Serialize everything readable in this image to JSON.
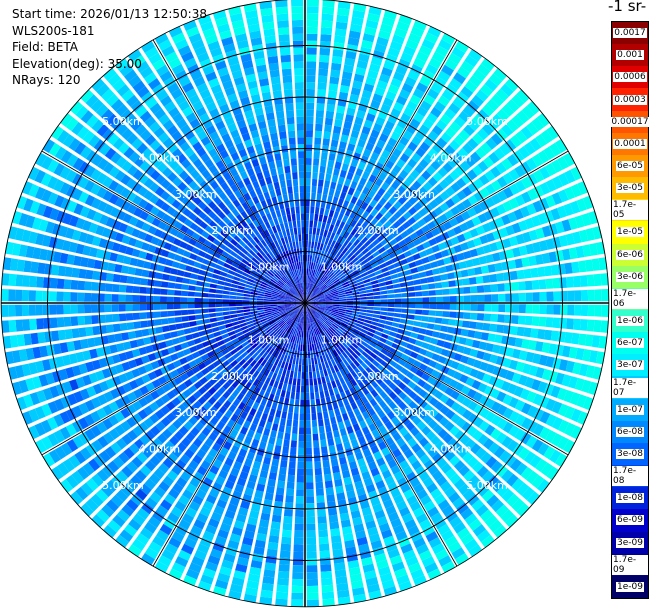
{
  "info": {
    "start_time": "Start time: 2026/01/13 12:50:38",
    "instrument": "WLS200s-181",
    "field": "Field: BETA",
    "elevation": "Elevation(deg): 35.00",
    "nrays": "NRays: 120"
  },
  "colorbar": {
    "unit_label": "-1 sr-",
    "labels": [
      "0.0017",
      "0.001",
      "0.0006",
      "0.0003",
      "0.00017",
      "0.0001",
      "6e-05",
      "3e-05",
      "1.7e-05",
      "1e-05",
      "6e-06",
      "3e-06",
      "1.7e-06",
      "1e-06",
      "6e-07",
      "3e-07",
      "1.7e-07",
      "1e-07",
      "6e-08",
      "3e-08",
      "1.7e-08",
      "1e-08",
      "6e-09",
      "3e-09",
      "1.7e-09",
      "1e-09"
    ],
    "colors": [
      "#8b0000",
      "#b20000",
      "#e00000",
      "#ff2200",
      "#ff5500",
      "#ff7700",
      "#ff9900",
      "#ffbb00",
      "#ffdd00",
      "#ffff00",
      "#ccff33",
      "#99ff66",
      "#66ff99",
      "#33ffcc",
      "#00ffee",
      "#00eeff",
      "#00ccff",
      "#00aaff",
      "#0088ff",
      "#0066ff",
      "#0044ee",
      "#0022dd",
      "#0000cc",
      "#0000aa",
      "#000088",
      "#000066"
    ]
  },
  "chart_data": {
    "type": "heatmap",
    "projection": "polar",
    "rings_km": [
      1,
      2,
      3,
      4,
      5
    ],
    "ring_labels": [
      "1.00km",
      "2.00km",
      "3.00km",
      "4.00km",
      "5.00km"
    ],
    "max_range_km": 5.9,
    "ray_count": 120,
    "range_gates": 44,
    "azimuth_lines_deg": [
      0,
      30,
      60,
      90,
      120,
      150,
      180,
      210,
      240,
      270,
      300,
      330
    ]
  }
}
